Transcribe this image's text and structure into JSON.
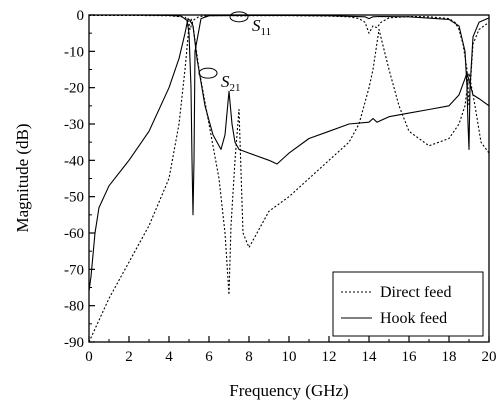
{
  "chart_data": {
    "type": "line",
    "title": "",
    "xlabel": "Frequency (GHz)",
    "ylabel": "Magnitude (dB)",
    "xlim": [
      0,
      20
    ],
    "ylim": [
      -90,
      0
    ],
    "xticks": [
      0,
      2,
      4,
      6,
      8,
      10,
      12,
      14,
      16,
      18,
      20
    ],
    "yticks": [
      0,
      -10,
      -20,
      -30,
      -40,
      -50,
      -60,
      -70,
      -80,
      -90
    ],
    "grid": false,
    "legend": {
      "position": "bottom-right",
      "entries": [
        {
          "label": "Direct feed",
          "style": "dotted"
        },
        {
          "label": "Hook feed",
          "style": "solid"
        }
      ]
    },
    "annotations": [
      {
        "main": "S",
        "sub": "11",
        "x": 7.5,
        "y": -0.5
      },
      {
        "main": "S",
        "sub": "21",
        "x": 5.95,
        "y": -16
      }
    ],
    "series": [
      {
        "name": "Direct feed",
        "style": "dotted",
        "curves": [
          {
            "label": "S11",
            "x": [
              0,
              2,
              4,
              4.8,
              4.95,
              5.05,
              5.2,
              5.5,
              6,
              7,
              7.3,
              7.5,
              8,
              10,
              12,
              13,
              13.5,
              13.8,
              14,
              14.2,
              14.4,
              14.6,
              15,
              16,
              17,
              18,
              18.3,
              18.5,
              18.7,
              18.9,
              19,
              19.2,
              19.5,
              20
            ],
            "y": [
              -0.1,
              -0.1,
              -0.2,
              -0.6,
              -1.5,
              -4,
              -1.5,
              -0.4,
              -0.2,
              -0.15,
              -0.2,
              -0.3,
              -0.2,
              -0.2,
              -0.3,
              -0.5,
              -1,
              -2,
              -5,
              -3,
              -3.5,
              -2,
              -0.8,
              -0.4,
              -0.5,
              -1,
              -2,
              -4,
              -8,
              -15,
              -25,
              -8,
              -4,
              -2
            ]
          },
          {
            "label": "S21",
            "x": [
              0,
              0.5,
              1,
              2,
              3,
              4,
              4.5,
              4.8,
              5,
              5.1,
              5.2,
              5.5,
              6,
              6.5,
              6.8,
              7,
              7.1,
              7.3,
              7.5,
              7.7,
              8,
              9,
              10,
              11,
              12,
              13,
              13.5,
              14,
              14.2,
              14.5,
              15,
              15.5,
              16,
              17,
              18,
              18.5,
              18.8,
              19,
              19.3,
              19.6,
              20
            ],
            "y": [
              -90,
              -84,
              -78,
              -68,
              -58,
              -45,
              -30,
              -15,
              -3,
              -1,
              -3,
              -15,
              -30,
              -45,
              -60,
              -77,
              -58,
              -40,
              -26,
              -60,
              -64,
              -54,
              -50,
              -45,
              -40,
              -35,
              -30,
              -20,
              -15,
              -4,
              -15,
              -25,
              -32,
              -36,
              -34,
              -30,
              -25,
              -16,
              -25,
              -35,
              -38
            ]
          }
        ]
      },
      {
        "name": "Hook feed",
        "style": "solid",
        "curves": [
          {
            "label": "S11",
            "x": [
              0,
              2,
              4,
              4.6,
              4.9,
              5.0,
              5.1,
              5.15,
              5.2,
              5.25,
              5.3,
              5.6,
              6,
              8,
              10,
              12,
              13.8,
              14,
              14.2,
              14.5,
              16,
              18,
              18.5,
              18.8,
              18.9,
              18.95,
              19.0,
              19.05,
              19.2,
              19.5,
              20
            ],
            "y": [
              0,
              0,
              -0.1,
              -0.3,
              -1.5,
              -5,
              -20,
              -40,
              -55,
              -40,
              -10,
              -1,
              -0.2,
              -0.1,
              -0.1,
              -0.2,
              -0.5,
              -1,
              -0.5,
              -0.4,
              -0.5,
              -1.2,
              -3,
              -10,
              -20,
              -30,
              -37,
              -20,
              -6,
              -2,
              -0.8
            ]
          },
          {
            "label": "S21",
            "x": [
              0,
              0.1,
              0.3,
              0.5,
              1,
              2,
              3,
              4,
              4.5,
              4.8,
              4.95,
              5.05,
              5.2,
              5.4,
              5.8,
              6.2,
              6.6,
              6.8,
              7.0,
              7.15,
              7.3,
              7.5,
              8,
              9,
              9.4,
              10,
              11,
              12,
              13,
              14,
              14.2,
              14.4,
              15,
              16,
              17,
              18,
              18.5,
              18.9,
              19.0,
              19.2,
              19.5,
              20
            ],
            "y": [
              -76,
              -72,
              -60,
              -53,
              -47,
              -40,
              -32,
              -20,
              -12,
              -5,
              -1,
              -1.5,
              -3,
              -12,
              -25,
              -33,
              -37,
              -33,
              -21,
              -30,
              -35,
              -37,
              -38,
              -40,
              -41,
              -38,
              -34,
              -32,
              -30,
              -29.5,
              -28.5,
              -29.5,
              -28,
              -27,
              -26,
              -25,
              -22,
              -16,
              -18,
              -22,
              -23,
              -25
            ]
          }
        ]
      }
    ]
  }
}
